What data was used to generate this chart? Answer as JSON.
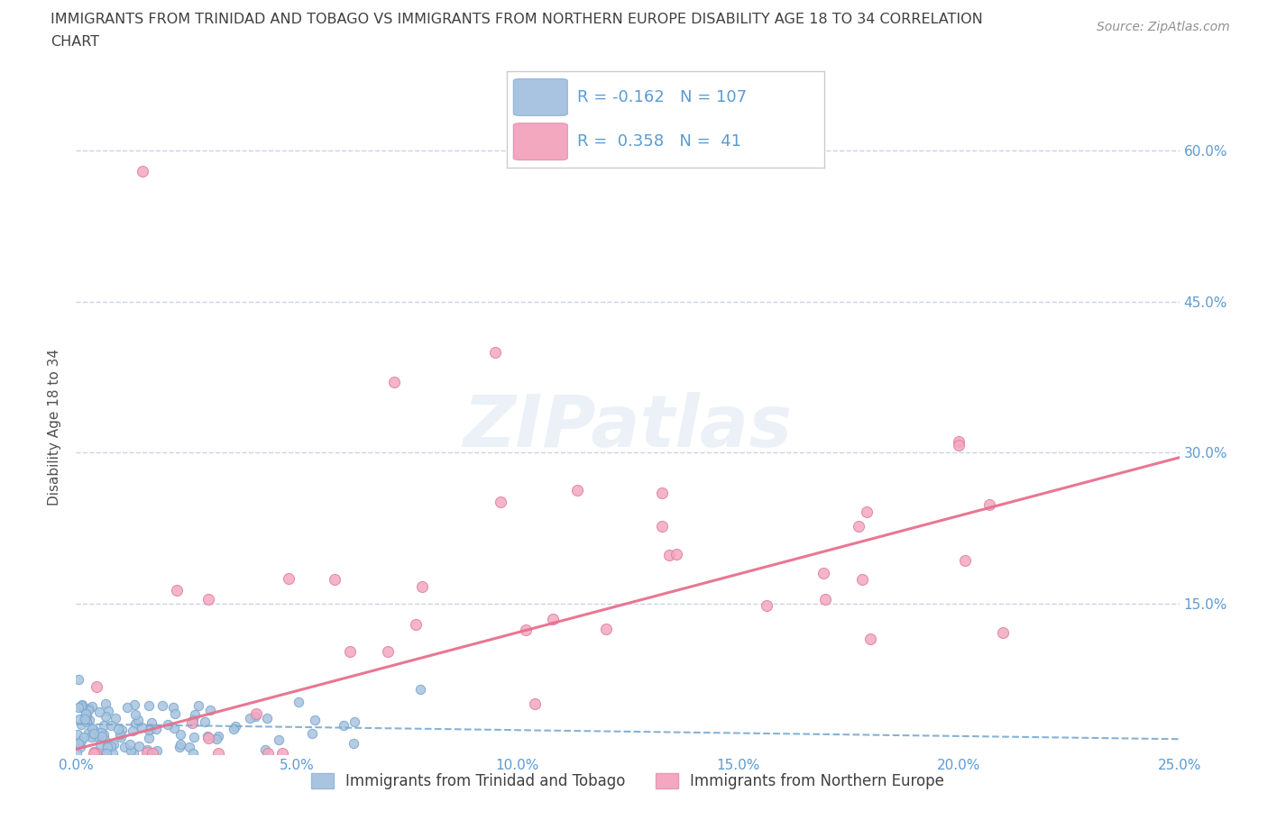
{
  "title_line1": "IMMIGRANTS FROM TRINIDAD AND TOBAGO VS IMMIGRANTS FROM NORTHERN EUROPE DISABILITY AGE 18 TO 34 CORRELATION",
  "title_line2": "CHART",
  "source_text": "Source: ZipAtlas.com",
  "ylabel": "Disability Age 18 to 34",
  "watermark": "ZIPatlas",
  "series1_label": "Immigrants from Trinidad and Tobago",
  "series2_label": "Immigrants from Northern Europe",
  "series1_R": -0.162,
  "series1_N": 107,
  "series2_R": 0.358,
  "series2_N": 41,
  "series1_color": "#a8c4e0",
  "series1_edge_color": "#7aa8cc",
  "series2_color": "#f4a8c0",
  "series2_edge_color": "#e080a0",
  "series1_line_color": "#7aaad0",
  "series2_line_color": "#e8708c",
  "xlim": [
    0.0,
    0.25
  ],
  "ylim": [
    0.0,
    0.65
  ],
  "xticks": [
    0.0,
    0.05,
    0.1,
    0.15,
    0.2,
    0.25
  ],
  "yticks": [
    0.0,
    0.15,
    0.3,
    0.45,
    0.6
  ],
  "background_color": "#ffffff",
  "title_color": "#404040",
  "tick_color": "#5b9bd5",
  "legend_R_color": "#5b9bd5",
  "grid_color": "#c8d4e8",
  "series1_seed": 42,
  "series2_seed": 7
}
